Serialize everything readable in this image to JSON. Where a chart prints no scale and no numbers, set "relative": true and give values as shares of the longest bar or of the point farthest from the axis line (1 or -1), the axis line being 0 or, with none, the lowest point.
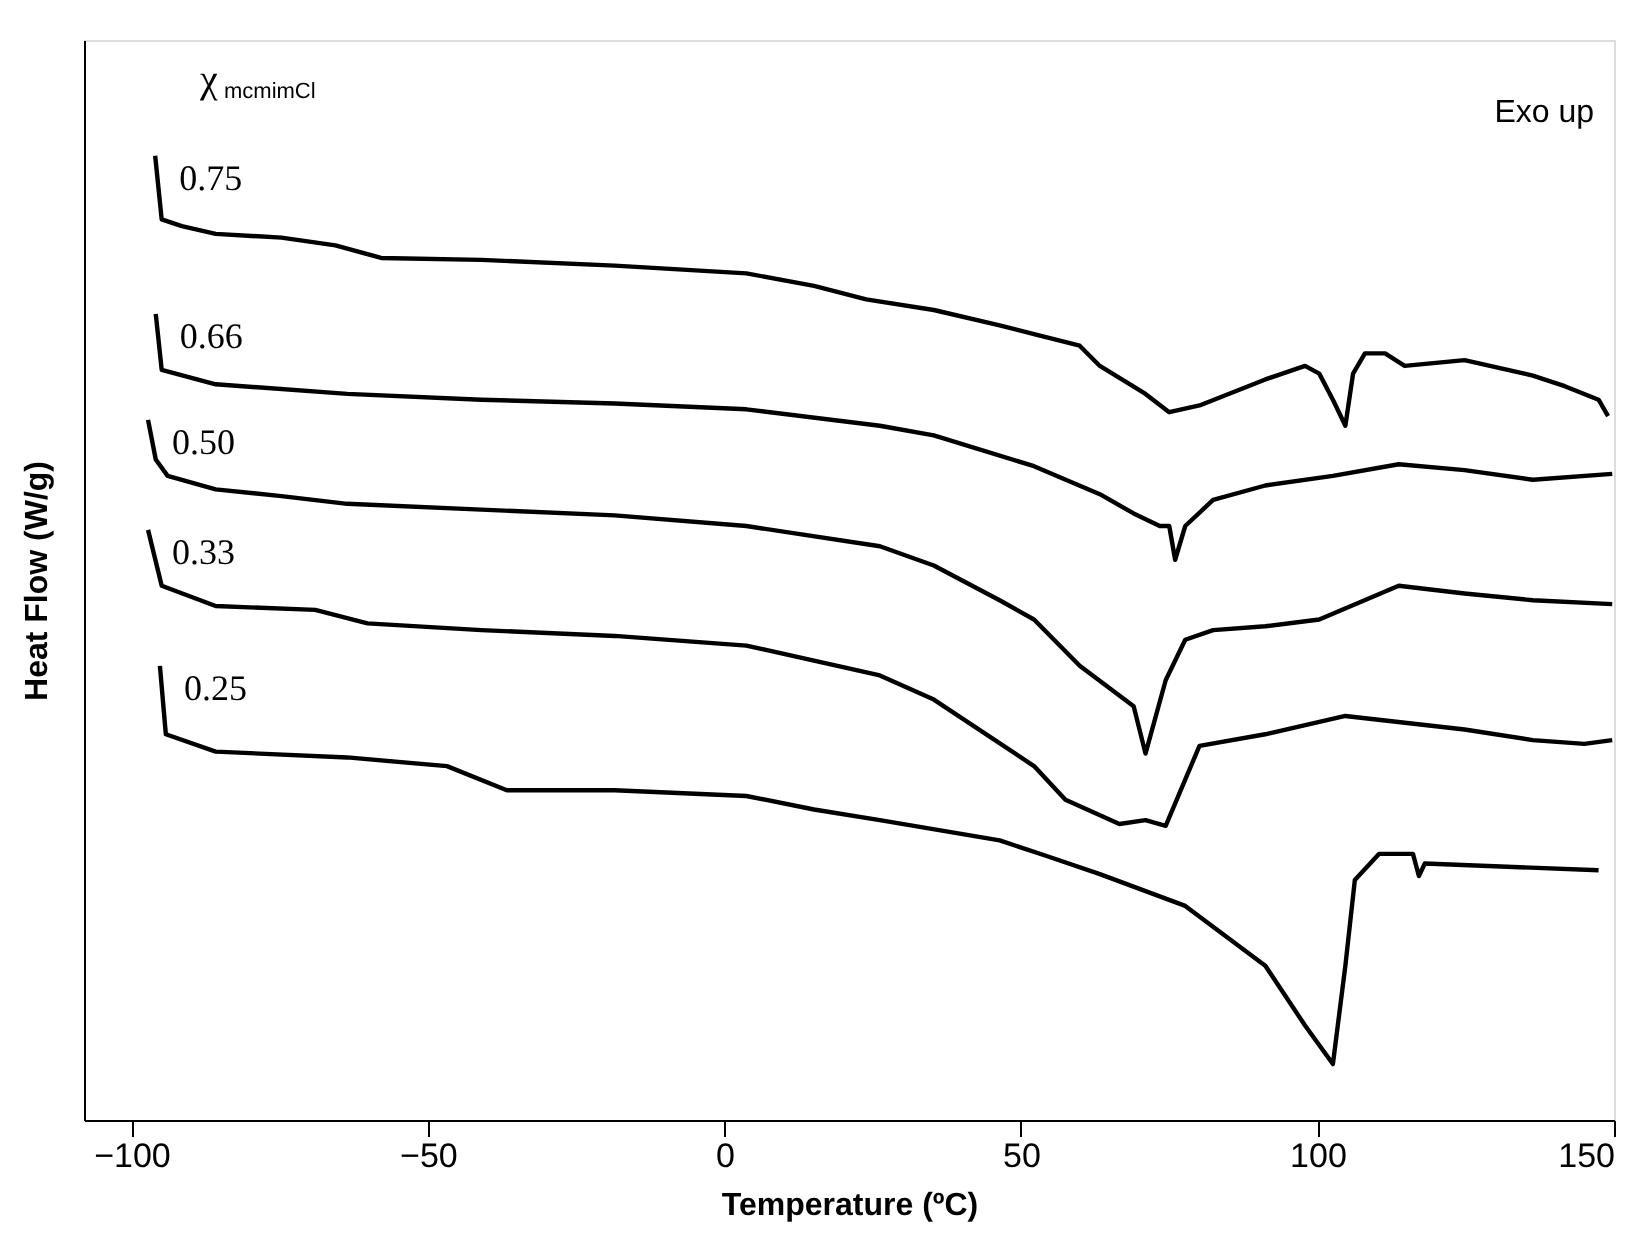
{
  "chart_data": {
    "type": "line",
    "relative": true,
    "xlabel": "Temperature (ºC)",
    "ylabel": "Heat Flow (W/g)",
    "legend_title": "χ$_{mcmimCl}$",
    "annotations": [
      "Exo up"
    ],
    "xlim": [
      -108,
      150
    ],
    "xticks": [
      -100,
      -50,
      0,
      50,
      100,
      150
    ],
    "grid": false,
    "marker": "none",
    "line_style": "solid",
    "series": [
      {
        "name": "0.75",
        "color": "#000000",
        "x": [
          -96.0,
          -94.9,
          -91.5,
          -85.8,
          -74.7,
          -65.6,
          -57.9,
          -41.0,
          -18.5,
          3.7,
          15.1,
          23.9,
          35.3,
          46.4,
          52.2,
          59.9,
          63.3,
          71.0,
          75.0,
          80.1,
          91.2,
          97.9,
          100.3,
          102.6,
          104.7,
          106.0,
          108.0,
          111.4,
          114.7,
          124.8,
          136.3,
          141.7,
          147.4,
          149.0
        ],
        "values": [
          1.0,
          0.934,
          0.927,
          0.919,
          0.915,
          0.907,
          0.894,
          0.892,
          0.886,
          0.878,
          0.865,
          0.851,
          0.84,
          0.824,
          0.815,
          0.803,
          0.782,
          0.753,
          0.734,
          0.741,
          0.768,
          0.782,
          0.774,
          0.747,
          0.72,
          0.774,
          0.795,
          0.795,
          0.782,
          0.788,
          0.772,
          0.761,
          0.747,
          0.73
        ]
      },
      {
        "name": "0.66",
        "color": "#000000",
        "x": [
          -95.9,
          -94.9,
          -85.8,
          -63.6,
          -41.0,
          -18.5,
          3.7,
          26.2,
          35.3,
          52.2,
          63.3,
          69.0,
          73.4,
          75.0,
          76.0,
          77.7,
          82.4,
          91.2,
          102.6,
          113.7,
          124.8,
          136.3,
          149.7
        ],
        "values": [
          0.836,
          0.778,
          0.763,
          0.753,
          0.747,
          0.743,
          0.737,
          0.72,
          0.71,
          0.678,
          0.649,
          0.629,
          0.616,
          0.616,
          0.581,
          0.616,
          0.643,
          0.658,
          0.668,
          0.68,
          0.674,
          0.664,
          0.67
        ]
      },
      {
        "name": "0.50",
        "color": "#000000",
        "x": [
          -97.2,
          -95.9,
          -93.9,
          -85.8,
          -74.7,
          -63.6,
          -41.0,
          -18.5,
          3.7,
          26.2,
          35.3,
          46.4,
          52.2,
          59.9,
          69.0,
          71.0,
          74.4,
          77.7,
          82.4,
          91.2,
          100.3,
          113.7,
          124.8,
          136.3,
          149.7
        ],
        "values": [
          0.726,
          0.685,
          0.668,
          0.654,
          0.647,
          0.639,
          0.633,
          0.627,
          0.616,
          0.595,
          0.575,
          0.539,
          0.519,
          0.471,
          0.429,
          0.38,
          0.456,
          0.498,
          0.508,
          0.512,
          0.519,
          0.554,
          0.546,
          0.539,
          0.535
        ]
      },
      {
        "name": "0.33",
        "color": "#000000",
        "x": [
          -97.2,
          -94.9,
          -85.8,
          -69.0,
          -60.2,
          -41.0,
          -18.5,
          3.7,
          26.2,
          35.3,
          52.2,
          57.5,
          66.6,
          71.0,
          74.4,
          80.1,
          91.2,
          104.7,
          124.8,
          136.3,
          145.0,
          149.7
        ],
        "values": [
          0.612,
          0.554,
          0.533,
          0.529,
          0.515,
          0.508,
          0.502,
          0.492,
          0.461,
          0.436,
          0.367,
          0.332,
          0.307,
          0.311,
          0.305,
          0.388,
          0.4,
          0.419,
          0.405,
          0.394,
          0.39,
          0.394
        ]
      },
      {
        "name": "0.25",
        "color": "#000000",
        "x": [
          -95.2,
          -94.2,
          -85.8,
          -63.6,
          -46.8,
          -36.7,
          -18.5,
          3.7,
          15.1,
          26.2,
          46.4,
          54.2,
          63.3,
          77.7,
          91.2,
          97.9,
          102.6,
          104.7,
          106.3,
          110.4,
          116.1,
          117.1,
          118.1,
          147.4
        ],
        "values": [
          0.471,
          0.4,
          0.382,
          0.376,
          0.367,
          0.342,
          0.342,
          0.336,
          0.322,
          0.311,
          0.29,
          0.274,
          0.255,
          0.222,
          0.16,
          0.098,
          0.058,
          0.16,
          0.249,
          0.276,
          0.276,
          0.253,
          0.266,
          0.259
        ]
      }
    ]
  }
}
